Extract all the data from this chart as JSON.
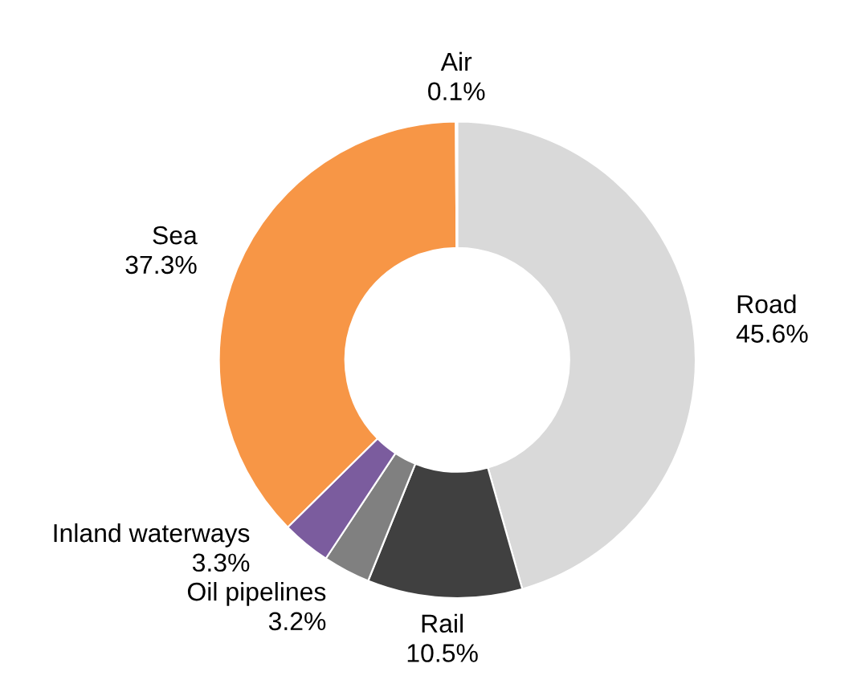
{
  "chart_data": {
    "type": "donut",
    "categories": [
      "Road",
      "Rail",
      "Oil pipelines",
      "Inland waterways",
      "Sea",
      "Air"
    ],
    "values": [
      45.6,
      10.5,
      3.2,
      3.3,
      37.3,
      0.1
    ],
    "value_labels": [
      "45.6%",
      "10.5%",
      "3.2%",
      "3.3%",
      "37.3%",
      "0.1%"
    ],
    "colors": [
      "#d9d9d9",
      "#404040",
      "#808080",
      "#7b5c9e",
      "#f79646",
      "#1a1a1a"
    ],
    "legend": false
  }
}
